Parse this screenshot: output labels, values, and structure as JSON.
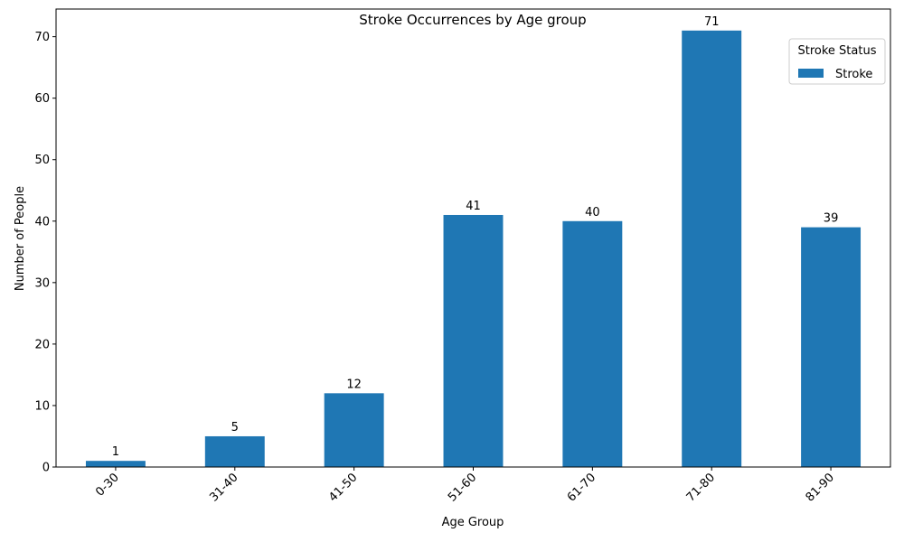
{
  "chart_data": {
    "type": "bar",
    "title": "Stroke Occurrences by Age group",
    "xlabel": "Age Group",
    "ylabel": "Number of People",
    "categories": [
      "0-30",
      "31-40",
      "41-50",
      "51-60",
      "61-70",
      "71-80",
      "81-90"
    ],
    "series": [
      {
        "name": "Stroke",
        "values": [
          1,
          5,
          12,
          41,
          40,
          71,
          39
        ]
      }
    ],
    "ylim": [
      0,
      74.5
    ],
    "yticks": [
      0,
      10,
      20,
      30,
      40,
      50,
      60,
      70
    ],
    "grid": false,
    "legend": {
      "title": "Stroke Status",
      "placement": "top-right"
    },
    "colors": {
      "Stroke": "#1f77b4"
    },
    "xtick_rotation": 45
  }
}
